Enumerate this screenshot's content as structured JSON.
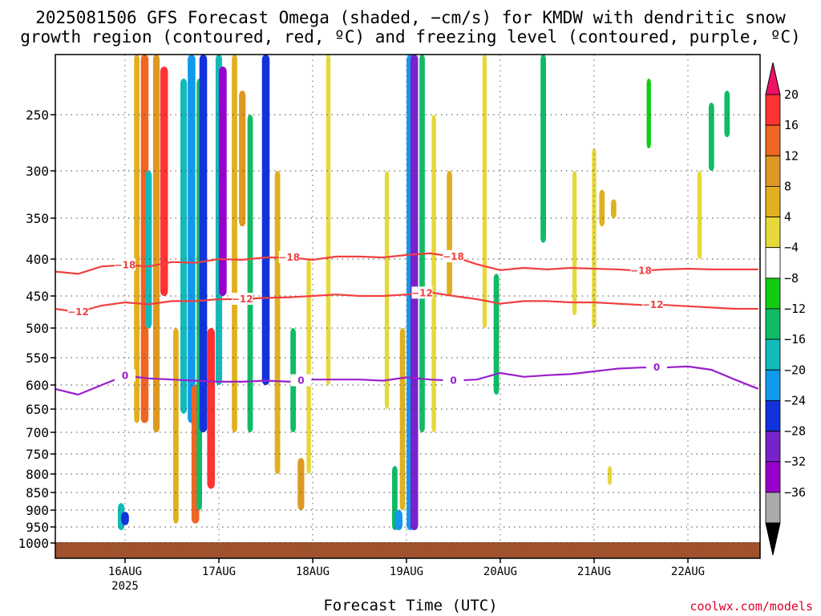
{
  "title": {
    "line1": "2025081506 GFS Forecast Omega (shaded, −cm/s) for KMDW with dendritic snow",
    "line2": "growth region (contoured, red, ºC) and freezing level (contoured, purple, ºC)"
  },
  "xlabel": "Forecast Time (UTC)",
  "credit": "coolwx.com/models",
  "chart_data": {
    "type": "heatmap",
    "title": "2025081506 GFS Forecast Omega (shaded, −cm/s) for KMDW with dendritic snow growth region (contoured, red, ºC) and freezing level (contoured, purple, ºC)",
    "xlabel": "Forecast Time (UTC)",
    "ylabel": "",
    "x_ticks": [
      {
        "label": "16AUG",
        "sub": "2025",
        "hour": 18
      },
      {
        "label": "17AUG",
        "sub": "",
        "hour": 42
      },
      {
        "label": "18AUG",
        "sub": "",
        "hour": 66
      },
      {
        "label": "19AUG",
        "sub": "",
        "hour": 90
      },
      {
        "label": "20AUG",
        "sub": "",
        "hour": 114
      },
      {
        "label": "21AUG",
        "sub": "",
        "hour": 138
      },
      {
        "label": "22AUG",
        "sub": "",
        "hour": 162
      }
    ],
    "xlim_hours": [
      0,
      180
    ],
    "y_ticks": [
      250,
      300,
      350,
      400,
      450,
      500,
      550,
      600,
      650,
      700,
      750,
      800,
      850,
      900,
      950,
      1000
    ],
    "ylim_hPa": [
      200,
      1000
    ],
    "colorbar": {
      "labels": [
        "20",
        "16",
        "12",
        "8",
        "4",
        "−4",
        "−8",
        "−12",
        "−16",
        "−20",
        "−24",
        "−28",
        "−32",
        "−36"
      ],
      "colors": [
        "#ff3333",
        "#ee6622",
        "#dd9922",
        "#e0b020",
        "#e6d83a",
        "#ffffff",
        "#11cc11",
        "#11bb66",
        "#11bbbb",
        "#1199ee",
        "#1133dd",
        "#7722cc",
        "#9900cc",
        "#aaaaaa",
        "#000000"
      ],
      "top_arrow_color": "#ee1166",
      "bottom_arrow_color": "#000000"
    },
    "contours": [
      {
        "label": "−18",
        "color": "#f04040",
        "points": [
          [
            0,
            417
          ],
          [
            6,
            420
          ],
          [
            12,
            410
          ],
          [
            18,
            408
          ],
          [
            24,
            410
          ],
          [
            30,
            404
          ],
          [
            36,
            405
          ],
          [
            42,
            400
          ],
          [
            48,
            401
          ],
          [
            54,
            398
          ],
          [
            60,
            398
          ],
          [
            66,
            401
          ],
          [
            72,
            397
          ],
          [
            78,
            397
          ],
          [
            84,
            398
          ],
          [
            90,
            395
          ],
          [
            96,
            393
          ],
          [
            102,
            397
          ],
          [
            108,
            407
          ],
          [
            114,
            415
          ],
          [
            120,
            412
          ],
          [
            126,
            414
          ],
          [
            132,
            412
          ],
          [
            138,
            413
          ],
          [
            144,
            414
          ],
          [
            150,
            416
          ],
          [
            156,
            414
          ],
          [
            162,
            413
          ],
          [
            168,
            414
          ],
          [
            174,
            414
          ],
          [
            180,
            414
          ]
        ],
        "label_hours": [
          18,
          60,
          102,
          150
        ]
      },
      {
        "label": "−12",
        "color": "#f04040",
        "points": [
          [
            0,
            470
          ],
          [
            6,
            475
          ],
          [
            12,
            465
          ],
          [
            18,
            460
          ],
          [
            24,
            463
          ],
          [
            30,
            458
          ],
          [
            36,
            458
          ],
          [
            42,
            455
          ],
          [
            48,
            455
          ],
          [
            54,
            453
          ],
          [
            60,
            452
          ],
          [
            66,
            450
          ],
          [
            72,
            448
          ],
          [
            78,
            450
          ],
          [
            84,
            450
          ],
          [
            90,
            448
          ],
          [
            96,
            445
          ],
          [
            102,
            450
          ],
          [
            108,
            455
          ],
          [
            114,
            462
          ],
          [
            120,
            458
          ],
          [
            126,
            458
          ],
          [
            132,
            460
          ],
          [
            138,
            460
          ],
          [
            144,
            462
          ],
          [
            150,
            464
          ],
          [
            156,
            464
          ],
          [
            162,
            466
          ],
          [
            168,
            468
          ],
          [
            174,
            470
          ],
          [
            180,
            470
          ]
        ],
        "label_hours": [
          6,
          48,
          94,
          153
        ]
      },
      {
        "label": "0",
        "color": "#9a1fcc",
        "points": [
          [
            0,
            608
          ],
          [
            6,
            620
          ],
          [
            12,
            600
          ],
          [
            18,
            583
          ],
          [
            24,
            588
          ],
          [
            30,
            590
          ],
          [
            36,
            592
          ],
          [
            42,
            594
          ],
          [
            48,
            594
          ],
          [
            54,
            592
          ],
          [
            60,
            594
          ],
          [
            66,
            590
          ],
          [
            72,
            590
          ],
          [
            78,
            590
          ],
          [
            84,
            592
          ],
          [
            90,
            586
          ],
          [
            96,
            590
          ],
          [
            102,
            592
          ],
          [
            108,
            590
          ],
          [
            114,
            578
          ],
          [
            120,
            585
          ],
          [
            126,
            582
          ],
          [
            132,
            580
          ],
          [
            138,
            575
          ],
          [
            144,
            570
          ],
          [
            150,
            568
          ],
          [
            156,
            568
          ],
          [
            162,
            566
          ],
          [
            168,
            572
          ],
          [
            174,
            590
          ],
          [
            180,
            608
          ]
        ],
        "label_hours": [
          18,
          63,
          102,
          154
        ]
      }
    ],
    "omega_regions": [
      {
        "hour": 17,
        "p_top": 880,
        "p_bot": 960,
        "value": -12
      },
      {
        "hour": 18,
        "p_top": 905,
        "p_bot": 945,
        "value": -20
      },
      {
        "hour": 21,
        "p_top": 200,
        "p_bot": 680,
        "value": 8
      },
      {
        "hour": 23,
        "p_top": 200,
        "p_bot": 680,
        "value": 16
      },
      {
        "hour": 24,
        "p_top": 300,
        "p_bot": 500,
        "value": -12
      },
      {
        "hour": 26,
        "p_top": 200,
        "p_bot": 700,
        "value": 12
      },
      {
        "hour": 28,
        "p_top": 210,
        "p_bot": 450,
        "value": 20
      },
      {
        "hour": 31,
        "p_top": 500,
        "p_bot": 940,
        "value": 8
      },
      {
        "hour": 33,
        "p_top": 220,
        "p_bot": 660,
        "value": -12
      },
      {
        "hour": 35,
        "p_top": 200,
        "p_bot": 680,
        "value": -16
      },
      {
        "hour": 36,
        "p_top": 600,
        "p_bot": 940,
        "value": 16
      },
      {
        "hour": 37,
        "p_top": 220,
        "p_bot": 900,
        "value": -8
      },
      {
        "hour": 38,
        "p_top": 200,
        "p_bot": 700,
        "value": -20
      },
      {
        "hour": 40,
        "p_top": 500,
        "p_bot": 840,
        "value": 20
      },
      {
        "hour": 42,
        "p_top": 200,
        "p_bot": 600,
        "value": -12
      },
      {
        "hour": 43,
        "p_top": 210,
        "p_bot": 450,
        "value": -28
      },
      {
        "hour": 46,
        "p_top": 200,
        "p_bot": 700,
        "value": 8
      },
      {
        "hour": 48,
        "p_top": 230,
        "p_bot": 360,
        "value": 12
      },
      {
        "hour": 50,
        "p_top": 250,
        "p_bot": 700,
        "value": -8
      },
      {
        "hour": 54,
        "p_top": 200,
        "p_bot": 600,
        "value": -20
      },
      {
        "hour": 57,
        "p_top": 300,
        "p_bot": 800,
        "value": 8
      },
      {
        "hour": 61,
        "p_top": 500,
        "p_bot": 700,
        "value": -8
      },
      {
        "hour": 63,
        "p_top": 760,
        "p_bot": 900,
        "value": 12
      },
      {
        "hour": 65,
        "p_top": 400,
        "p_bot": 800,
        "value": 4
      },
      {
        "hour": 70,
        "p_top": 200,
        "p_bot": 600,
        "value": 4
      },
      {
        "hour": 85,
        "p_top": 300,
        "p_bot": 650,
        "value": 4
      },
      {
        "hour": 87,
        "p_top": 780,
        "p_bot": 960,
        "value": -8
      },
      {
        "hour": 88,
        "p_top": 900,
        "p_bot": 960,
        "value": -16
      },
      {
        "hour": 89,
        "p_top": 500,
        "p_bot": 900,
        "value": 8
      },
      {
        "hour": 91,
        "p_top": 200,
        "p_bot": 960,
        "value": -16
      },
      {
        "hour": 92,
        "p_top": 200,
        "p_bot": 960,
        "value": -24
      },
      {
        "hour": 94,
        "p_top": 200,
        "p_bot": 700,
        "value": -8
      },
      {
        "hour": 97,
        "p_top": 250,
        "p_bot": 700,
        "value": 4
      },
      {
        "hour": 101,
        "p_top": 300,
        "p_bot": 450,
        "value": 8
      },
      {
        "hour": 110,
        "p_top": 200,
        "p_bot": 500,
        "value": 4
      },
      {
        "hour": 113,
        "p_top": 420,
        "p_bot": 620,
        "value": -8
      },
      {
        "hour": 125,
        "p_top": 200,
        "p_bot": 380,
        "value": -8
      },
      {
        "hour": 133,
        "p_top": 300,
        "p_bot": 480,
        "value": 4
      },
      {
        "hour": 138,
        "p_top": 280,
        "p_bot": 500,
        "value": 4
      },
      {
        "hour": 140,
        "p_top": 320,
        "p_bot": 360,
        "value": 8
      },
      {
        "hour": 143,
        "p_top": 330,
        "p_bot": 350,
        "value": 8
      },
      {
        "hour": 142,
        "p_top": 780,
        "p_bot": 830,
        "value": 4
      },
      {
        "hour": 152,
        "p_top": 220,
        "p_bot": 280,
        "value": -4
      },
      {
        "hour": 165,
        "p_top": 300,
        "p_bot": 400,
        "value": 4
      },
      {
        "hour": 168,
        "p_top": 240,
        "p_bot": 300,
        "value": -8
      },
      {
        "hour": 172,
        "p_top": 230,
        "p_bot": 270,
        "value": -8
      }
    ]
  }
}
